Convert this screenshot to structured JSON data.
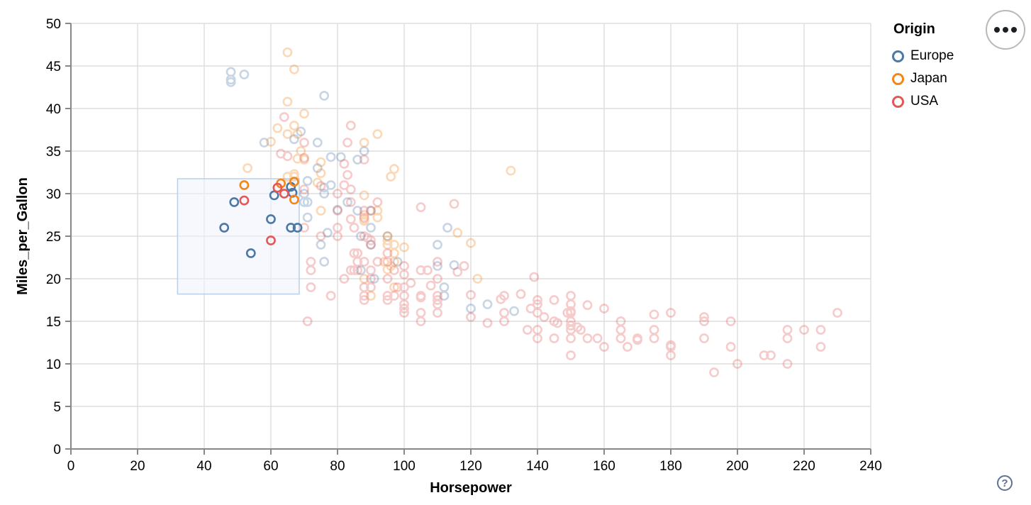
{
  "actions_menu": {
    "tooltip_dots": "•••"
  },
  "help": {
    "label": "?"
  },
  "chart_data": {
    "type": "scatter",
    "title": "",
    "xlabel": "Horsepower",
    "ylabel": "Miles_per_Gallon",
    "xlim": [
      0,
      240
    ],
    "ylim": [
      0,
      50
    ],
    "x_ticks": [
      0,
      20,
      40,
      60,
      80,
      100,
      120,
      140,
      160,
      180,
      200,
      220,
      240
    ],
    "y_ticks": [
      0,
      5,
      10,
      15,
      20,
      25,
      30,
      35,
      40,
      45,
      50
    ],
    "grid": true,
    "legend": {
      "title": "Origin",
      "position": "top-right",
      "entries": [
        {
          "label": "Europe",
          "color": "#4c78a8"
        },
        {
          "label": "Japan",
          "color": "#f58518"
        },
        {
          "label": "USA",
          "color": "#e45756"
        }
      ]
    },
    "brush_selection": {
      "x": [
        32,
        68.5
      ],
      "y": [
        18.2,
        31.75
      ],
      "fill": "#eef3fb",
      "stroke": "#b9cfe8"
    },
    "point_style": {
      "radius": 5.6,
      "stroke_width": 2.6,
      "faded_opacity": 0.3
    },
    "series": [
      {
        "name": "Europe",
        "color": "#4c78a8",
        "selected": [
          [
            46,
            26
          ],
          [
            49,
            29
          ],
          [
            54,
            23
          ],
          [
            60,
            27
          ],
          [
            66,
            26
          ],
          [
            68,
            26
          ],
          [
            61,
            29.8
          ],
          [
            66,
            30.8
          ],
          [
            66.5,
            30.1
          ]
        ],
        "unselected": [
          [
            87,
            25
          ],
          [
            90,
            24
          ],
          [
            95,
            25
          ],
          [
            113,
            26
          ],
          [
            90,
            28
          ],
          [
            70,
            30
          ],
          [
            76,
            30
          ],
          [
            112,
            18
          ],
          [
            76,
            22
          ],
          [
            87,
            21
          ],
          [
            90,
            26
          ],
          [
            75,
            24
          ],
          [
            91,
            20
          ],
          [
            112,
            19
          ],
          [
            110,
            24
          ],
          [
            86,
            28
          ],
          [
            48,
            43.1
          ],
          [
            48,
            44.3
          ],
          [
            48,
            43.4
          ],
          [
            52,
            44
          ],
          [
            67,
            36.4
          ],
          [
            71,
            29
          ],
          [
            70,
            29
          ],
          [
            78,
            31
          ],
          [
            83,
            29
          ],
          [
            74,
            33
          ],
          [
            81,
            34.3
          ],
          [
            80,
            28.1
          ],
          [
            76,
            30.7
          ],
          [
            77,
            25.4
          ],
          [
            110,
            21.5
          ],
          [
            78,
            34.3
          ],
          [
            71,
            31.5
          ],
          [
            115,
            21.6
          ],
          [
            133,
            16.2
          ],
          [
            125,
            17
          ],
          [
            120,
            16.5
          ],
          [
            98,
            22
          ],
          [
            88,
            35
          ],
          [
            58,
            36
          ],
          [
            69,
            37.3
          ],
          [
            76,
            41.5
          ],
          [
            74,
            36
          ],
          [
            71,
            27.2
          ],
          [
            86,
            34
          ]
        ]
      },
      {
        "name": "Japan",
        "color": "#f58518",
        "selected": [
          [
            52,
            31
          ],
          [
            63,
            31.2
          ],
          [
            67,
            31.4
          ],
          [
            67,
            29.3
          ]
        ],
        "unselected": [
          [
            95,
            24
          ],
          [
            88,
            27
          ],
          [
            88,
            27.5
          ],
          [
            95,
            25
          ],
          [
            95,
            24.5
          ],
          [
            97,
            19
          ],
          [
            92,
            28
          ],
          [
            97,
            23
          ],
          [
            88,
            26.8
          ],
          [
            88,
            20
          ],
          [
            94,
            22
          ],
          [
            90,
            18
          ],
          [
            122,
            20
          ],
          [
            67,
            32
          ],
          [
            69,
            35
          ],
          [
            65,
            32
          ],
          [
            53,
            33
          ],
          [
            60,
            36.1
          ],
          [
            70,
            39.4
          ],
          [
            97,
            24
          ],
          [
            65,
            46.6
          ],
          [
            67,
            44.6
          ],
          [
            65,
            40.8
          ],
          [
            62,
            37.7
          ],
          [
            65,
            37
          ],
          [
            68,
            34.1
          ],
          [
            68,
            37
          ],
          [
            75,
            32.4
          ],
          [
            75,
            33.7
          ],
          [
            88,
            36
          ],
          [
            70,
            34
          ],
          [
            67,
            38
          ],
          [
            100,
            23.7
          ],
          [
            116,
            25.4
          ],
          [
            120,
            24.2
          ],
          [
            132,
            32.7
          ],
          [
            97,
            22
          ],
          [
            95,
            21.1
          ],
          [
            67,
            32.3
          ],
          [
            74,
            31.3
          ],
          [
            96,
            32
          ],
          [
            92,
            27.2
          ],
          [
            75,
            28
          ],
          [
            96,
            21.5
          ],
          [
            92,
            37
          ],
          [
            97,
            32.9
          ],
          [
            88,
            29.8
          ]
        ]
      },
      {
        "name": "USA",
        "color": "#e45756",
        "selected": [
          [
            52,
            29.2
          ],
          [
            62,
            30.7
          ],
          [
            64,
            30
          ],
          [
            60,
            24.5
          ]
        ],
        "unselected": [
          [
            130,
            18
          ],
          [
            165,
            15
          ],
          [
            150,
            18
          ],
          [
            150,
            16
          ],
          [
            140,
            17
          ],
          [
            198,
            15
          ],
          [
            220,
            14
          ],
          [
            215,
            14
          ],
          [
            225,
            14
          ],
          [
            190,
            15
          ],
          [
            95,
            22
          ],
          [
            97,
            18
          ],
          [
            85,
            21
          ],
          [
            90,
            21
          ],
          [
            215,
            10
          ],
          [
            200,
            10
          ],
          [
            210,
            11
          ],
          [
            193,
            9
          ],
          [
            90,
            28
          ],
          [
            90,
            19
          ],
          [
            105,
            16
          ],
          [
            100,
            17
          ],
          [
            88,
            19
          ],
          [
            100,
            18
          ],
          [
            165,
            14
          ],
          [
            175,
            14
          ],
          [
            153,
            14
          ],
          [
            150,
            14
          ],
          [
            180,
            12
          ],
          [
            170,
            13
          ],
          [
            175,
            13
          ],
          [
            110,
            18
          ],
          [
            72,
            22
          ],
          [
            100,
            19
          ],
          [
            88,
            18
          ],
          [
            86,
            23
          ],
          [
            70,
            26
          ],
          [
            80,
            25
          ],
          [
            90,
            20
          ],
          [
            86,
            21
          ],
          [
            165,
            13
          ],
          [
            150,
            17
          ],
          [
            208,
            11
          ],
          [
            155,
            13
          ],
          [
            160,
            12
          ],
          [
            190,
            13
          ],
          [
            150,
            15
          ],
          [
            140,
            13
          ],
          [
            86,
            22
          ],
          [
            80,
            28
          ],
          [
            145,
            13
          ],
          [
            137,
            14
          ],
          [
            198,
            12
          ],
          [
            150,
            13
          ],
          [
            158,
            13
          ],
          [
            215,
            13
          ],
          [
            225,
            12
          ],
          [
            105,
            18
          ],
          [
            100,
            16
          ],
          [
            88,
            17.5
          ],
          [
            95,
            23
          ],
          [
            150,
            11
          ],
          [
            167,
            12
          ],
          [
            170,
            12.8
          ],
          [
            180,
            12.2
          ],
          [
            72,
            21
          ],
          [
            82,
            20
          ],
          [
            107,
            21
          ],
          [
            145,
            15
          ],
          [
            230,
            16
          ],
          [
            180,
            11
          ],
          [
            95,
            20
          ],
          [
            84,
            21
          ],
          [
            105,
            15
          ],
          [
            80,
            26
          ],
          [
            75,
            25
          ],
          [
            100,
            16.5
          ],
          [
            110,
            16
          ],
          [
            105,
            17.8
          ],
          [
            140,
            14
          ],
          [
            150,
            14.5
          ],
          [
            140,
            16
          ],
          [
            72,
            19
          ],
          [
            90,
            24
          ],
          [
            85,
            23
          ],
          [
            110,
            20
          ],
          [
            95,
            18
          ],
          [
            130,
            16
          ],
          [
            150,
            16.2
          ],
          [
            129,
            17.6
          ],
          [
            138,
            16.5
          ],
          [
            135,
            18.2
          ],
          [
            155,
            16.9
          ],
          [
            142,
            15.5
          ],
          [
            139,
            20.2
          ],
          [
            140,
            17.5
          ],
          [
            115,
            28.8
          ],
          [
            105,
            28.4
          ],
          [
            90,
            24.5
          ],
          [
            75,
            30.9
          ],
          [
            70,
            34.2
          ],
          [
            63,
            34.7
          ],
          [
            65,
            34.4
          ],
          [
            70,
            36
          ],
          [
            88,
            28
          ],
          [
            88,
            27.2
          ],
          [
            88,
            34
          ],
          [
            88,
            22
          ],
          [
            84,
            27
          ],
          [
            84,
            29
          ],
          [
            64,
            39
          ],
          [
            70,
            30.5
          ],
          [
            88,
            25
          ],
          [
            120,
            18.1
          ],
          [
            110,
            17.5
          ],
          [
            180,
            16
          ],
          [
            110,
            17
          ],
          [
            190,
            15.5
          ],
          [
            149,
            16
          ],
          [
            130,
            15
          ],
          [
            145,
            17.5
          ],
          [
            78,
            18
          ],
          [
            95,
            17.5
          ],
          [
            120,
            15.5
          ],
          [
            100,
            20.5
          ],
          [
            80,
            30
          ],
          [
            71,
            15
          ],
          [
            97,
            21
          ],
          [
            110,
            22
          ],
          [
            105,
            21
          ],
          [
            100,
            21.5
          ],
          [
            98,
            19
          ],
          [
            92,
            22
          ],
          [
            85,
            26
          ],
          [
            89,
            24.8
          ],
          [
            92,
            29
          ],
          [
            102,
            19.5
          ],
          [
            108,
            19.2
          ],
          [
            118,
            21.5
          ],
          [
            125,
            14.8
          ],
          [
            160,
            16.5
          ],
          [
            175,
            15.8
          ],
          [
            152,
            14.3
          ],
          [
            146,
            14.8
          ],
          [
            116,
            20.8
          ],
          [
            84,
            38
          ],
          [
            83,
            36
          ],
          [
            82,
            33.5
          ],
          [
            82,
            31
          ],
          [
            84,
            30.5
          ],
          [
            83,
            32.2
          ]
        ]
      }
    ]
  }
}
